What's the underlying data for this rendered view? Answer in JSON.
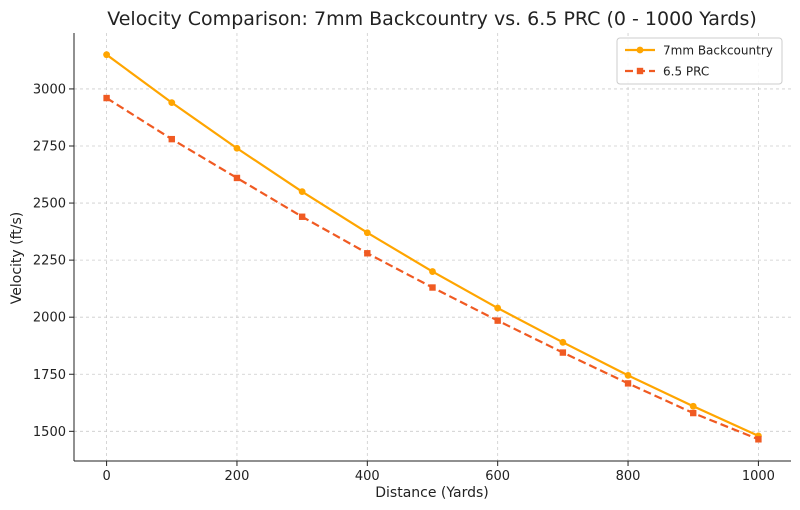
{
  "chart_data": {
    "type": "line",
    "title": "Velocity Comparison: 7mm Backcountry vs. 6.5 PRC (0 - 1000 Yards)",
    "xlabel": "Distance (Yards)",
    "ylabel": "Velocity (ft/s)",
    "x": [
      0,
      100,
      200,
      300,
      400,
      500,
      600,
      700,
      800,
      900,
      1000
    ],
    "xlim": [
      -50,
      1050
    ],
    "ylim": [
      1370,
      3245
    ],
    "xticks": [
      0,
      200,
      400,
      600,
      800,
      1000
    ],
    "yticks": [
      1500,
      1750,
      2000,
      2250,
      2500,
      2750,
      3000
    ],
    "grid": true,
    "legend_position": "top-right",
    "series": [
      {
        "name": "7mm Backcountry",
        "color": "#FFA500",
        "marker": "circle",
        "linestyle": "solid",
        "values": [
          3150,
          2940,
          2740,
          2550,
          2370,
          2200,
          2040,
          1890,
          1745,
          1610,
          1480
        ]
      },
      {
        "name": "6.5 PRC",
        "color": "#F05A22",
        "marker": "square",
        "linestyle": "dashed",
        "values": [
          2960,
          2780,
          2610,
          2440,
          2280,
          2130,
          1985,
          1845,
          1710,
          1580,
          1465
        ]
      }
    ]
  }
}
